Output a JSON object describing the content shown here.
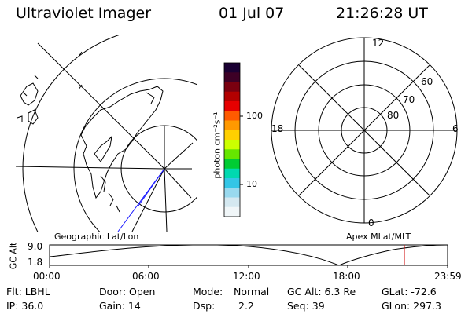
{
  "header": {
    "instrument": "Ultraviolet Imager",
    "date": "01 Jul 07",
    "time": "21:26:28 UT"
  },
  "colors": {
    "coastline": "#000000",
    "track": "#1a1aff",
    "current_marker": "#cc0000"
  },
  "geographic_map": {
    "label": "Geographic Lat/Lon"
  },
  "colorbar": {
    "unit_label": "photon cm⁻²s⁻¹",
    "ticks": [
      "100",
      "10"
    ],
    "stops": [
      "#1a0033",
      "#3d0026",
      "#7a0010",
      "#b30000",
      "#e60000",
      "#ff5a00",
      "#ff9900",
      "#ffd000",
      "#ccff00",
      "#66e600",
      "#00cc33",
      "#00d9b0",
      "#33c6e6",
      "#99d9ee",
      "#d4e8f0",
      "#f0f6f8"
    ]
  },
  "apex_plot": {
    "label": "Apex MLat/MLT",
    "mlt_labels": {
      "top": "12",
      "right": "6",
      "bottom": "0",
      "left": "18"
    },
    "lat_labels": [
      "60",
      "70",
      "80"
    ]
  },
  "altitude_strip": {
    "axis_title": "GC Alt",
    "y_ticks": [
      "9.0",
      "1.8"
    ],
    "x_ticks": [
      "00:00",
      "06:00",
      "12:00",
      "18:00",
      "23:59"
    ]
  },
  "info": {
    "row1": {
      "filter": "Flt: LBHL",
      "door": "Door: Open",
      "mode_label": "Mode:",
      "mode_value": "Normal",
      "gcalt": "GC Alt: 6.3 Re",
      "glat": "GLat: -72.6"
    },
    "row2": {
      "ip": "IP: 36.0",
      "gain": "Gain: 14",
      "dsp_label": "Dsp:",
      "dsp_value": "2.2",
      "seq": "Seq: 39",
      "glon": "GLon: 297.3"
    }
  }
}
